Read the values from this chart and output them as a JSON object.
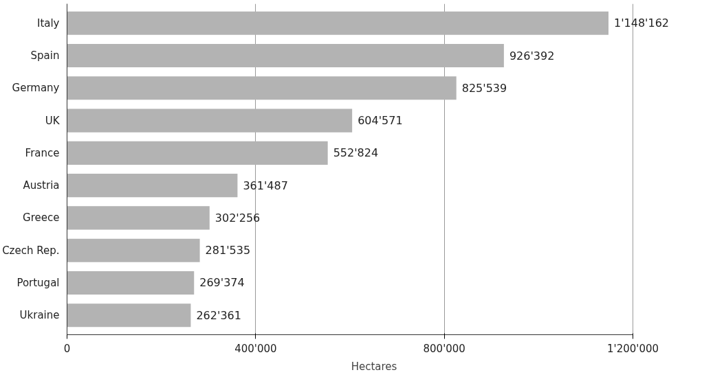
{
  "chart_data": {
    "type": "bar",
    "orientation": "horizontal",
    "xlabel": "Hectares",
    "categories": [
      "Italy",
      "Spain",
      "Germany",
      "UK",
      "France",
      "Austria",
      "Greece",
      "Czech Rep.",
      "Portugal",
      "Ukraine"
    ],
    "values": [
      1148162,
      926392,
      825539,
      604571,
      552824,
      361487,
      302256,
      281535,
      269374,
      262361
    ],
    "value_labels": [
      "1'148'162",
      "926'392",
      "825'539",
      "604'571",
      "552'824",
      "361'487",
      "302'256",
      "281'535",
      "269'374",
      "262'361"
    ],
    "color": "#b3b3b3",
    "xlim": [
      0,
      1200000
    ],
    "xticks": [
      0,
      {
        "value": 400000,
        "label": "400'000"
      },
      {
        "value": 800000,
        "label": "800'000"
      },
      {
        "value": 1200000,
        "label": "1'200'000"
      }
    ],
    "grid": "x"
  }
}
